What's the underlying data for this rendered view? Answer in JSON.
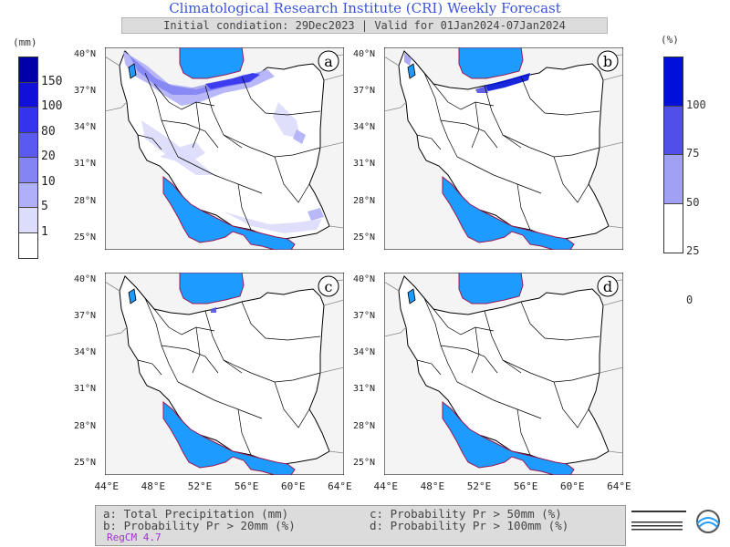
{
  "header": {
    "title": "Climatological Research Institute (CRI) Weekly Forecast",
    "subtitle": "Initial condiation: 29Dec2023 | Valid for 01Jan2024-07Jan2024"
  },
  "left_colorbar": {
    "unit": "(mm)",
    "ticks": [
      "150",
      "100",
      "80",
      "20",
      "10",
      "5",
      "1"
    ],
    "colors": [
      "#0000a8",
      "#1010d8",
      "#3434ee",
      "#5a5af0",
      "#8484f4",
      "#b0b0f8",
      "#dcdcfc",
      "#ffffff"
    ]
  },
  "right_colorbar": {
    "unit": "(%)",
    "ticks": [
      "100",
      "75",
      "50",
      "25",
      "0"
    ],
    "colors": [
      "#0010d8",
      "#5050e8",
      "#a0a0f4",
      "#ffffff"
    ]
  },
  "panels": [
    {
      "id": "a",
      "label": "a"
    },
    {
      "id": "b",
      "label": "b"
    },
    {
      "id": "c",
      "label": "c"
    },
    {
      "id": "d",
      "label": "d"
    }
  ],
  "axes": {
    "lat_labels": [
      "40°N",
      "37°N",
      "34°N",
      "31°N",
      "28°N",
      "25°N"
    ],
    "lon_labels": [
      "44°E",
      "48°E",
      "52°E",
      "56°E",
      "60°E",
      "64°E"
    ]
  },
  "legend": {
    "a": "a: Total Precipitation (mm)",
    "b": "b: Probability Pr > 20mm (%)",
    "c": "c: Probability Pr > 50mm (%)",
    "d": "d: Probability Pr > 100mm (%)",
    "model": "RegCM 4.7"
  },
  "colors": {
    "water": "#1e9bff",
    "land": "#ffffff",
    "outside": "#f4f4f4",
    "title": "#3a54d6",
    "coast": "#9a1a55"
  }
}
